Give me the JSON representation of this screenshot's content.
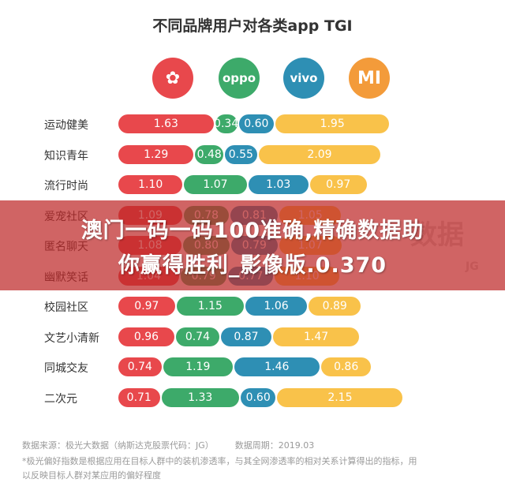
{
  "chart_data": {
    "type": "bar",
    "title": "不同品牌用户对各类app TGI",
    "series": [
      {
        "name": "华为",
        "color": "#e8484c",
        "values": [
          1.63,
          1.29,
          1.1,
          1.09,
          1.08,
          1.04,
          0.97,
          0.96,
          0.74,
          0.71
        ]
      },
      {
        "name": "oppo",
        "color": "#3daa6a",
        "values": [
          0.34,
          0.48,
          1.07,
          0.78,
          0.8,
          0.79,
          1.15,
          0.74,
          1.19,
          1.33
        ]
      },
      {
        "name": "vivo",
        "color": "#2e8fb4",
        "values": [
          0.6,
          0.55,
          1.03,
          0.81,
          0.79,
          0.77,
          1.06,
          0.87,
          1.46,
          0.6
        ]
      },
      {
        "name": "MI",
        "color": "#f9c24a",
        "values": [
          1.95,
          2.09,
          0.97,
          1.05,
          1.07,
          1.1,
          0.89,
          1.47,
          0.86,
          2.15
        ]
      }
    ],
    "categories": [
      "运动健美",
      "知识青年",
      "流行时尚",
      "爱宠社区",
      "匿名聊天",
      "幽默笑话",
      "校园社区",
      "文艺小清新",
      "同城交友",
      "二次元"
    ]
  },
  "logos": [
    {
      "name": "huawei",
      "label": "✿",
      "color": "#e8484c"
    },
    {
      "name": "oppo",
      "label": "oppo",
      "color": "#3daa6a"
    },
    {
      "name": "vivo",
      "label": "vivo",
      "color": "#2e8fb4"
    },
    {
      "name": "mi",
      "label": "MI",
      "color": "#f39b3a"
    }
  ],
  "footer": {
    "source": "数据来源：极光大数据（纳斯达克股票代码：JG）",
    "period": "数据周期：2019.03",
    "note1": "*极光偏好指数是根据应用在目标人群中的装机渗透率，与其全网渗透率的相对关系计算得出的指标，用",
    "note2": "以反映目标人群对某应用的偏好程度"
  },
  "banner": {
    "line1": "澳门一码一码100准确,精确数据助",
    "line2": "你赢得胜利_影像版.0.370"
  },
  "watermark": {
    "brand": "数据",
    "sub": "JG"
  }
}
